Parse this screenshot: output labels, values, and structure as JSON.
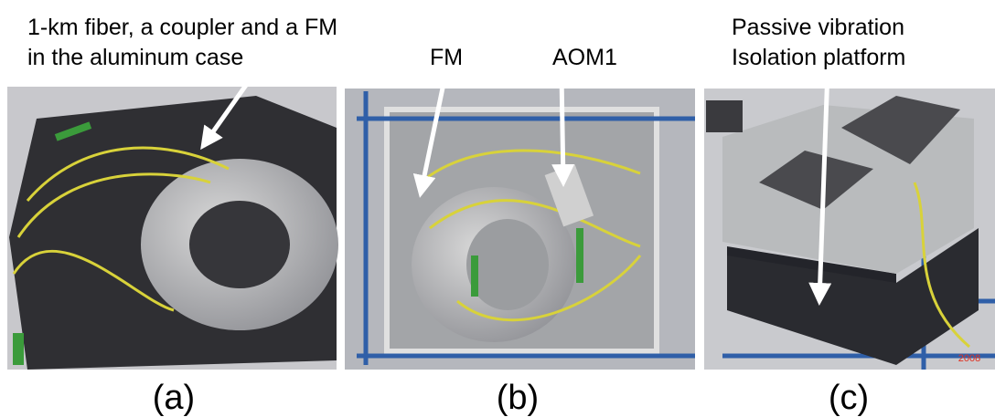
{
  "annotations": {
    "a": [
      "1-km fiber, a coupler and a FM",
      "in the aluminum case"
    ],
    "b_fm": "FM",
    "b_aom": "AOM1",
    "c": [
      "Passive vibration",
      "Isolation platform"
    ]
  },
  "panels": [
    {
      "label": "(a)"
    },
    {
      "label": "(b)"
    },
    {
      "label": "(c)"
    }
  ],
  "date_stamp": "2008"
}
